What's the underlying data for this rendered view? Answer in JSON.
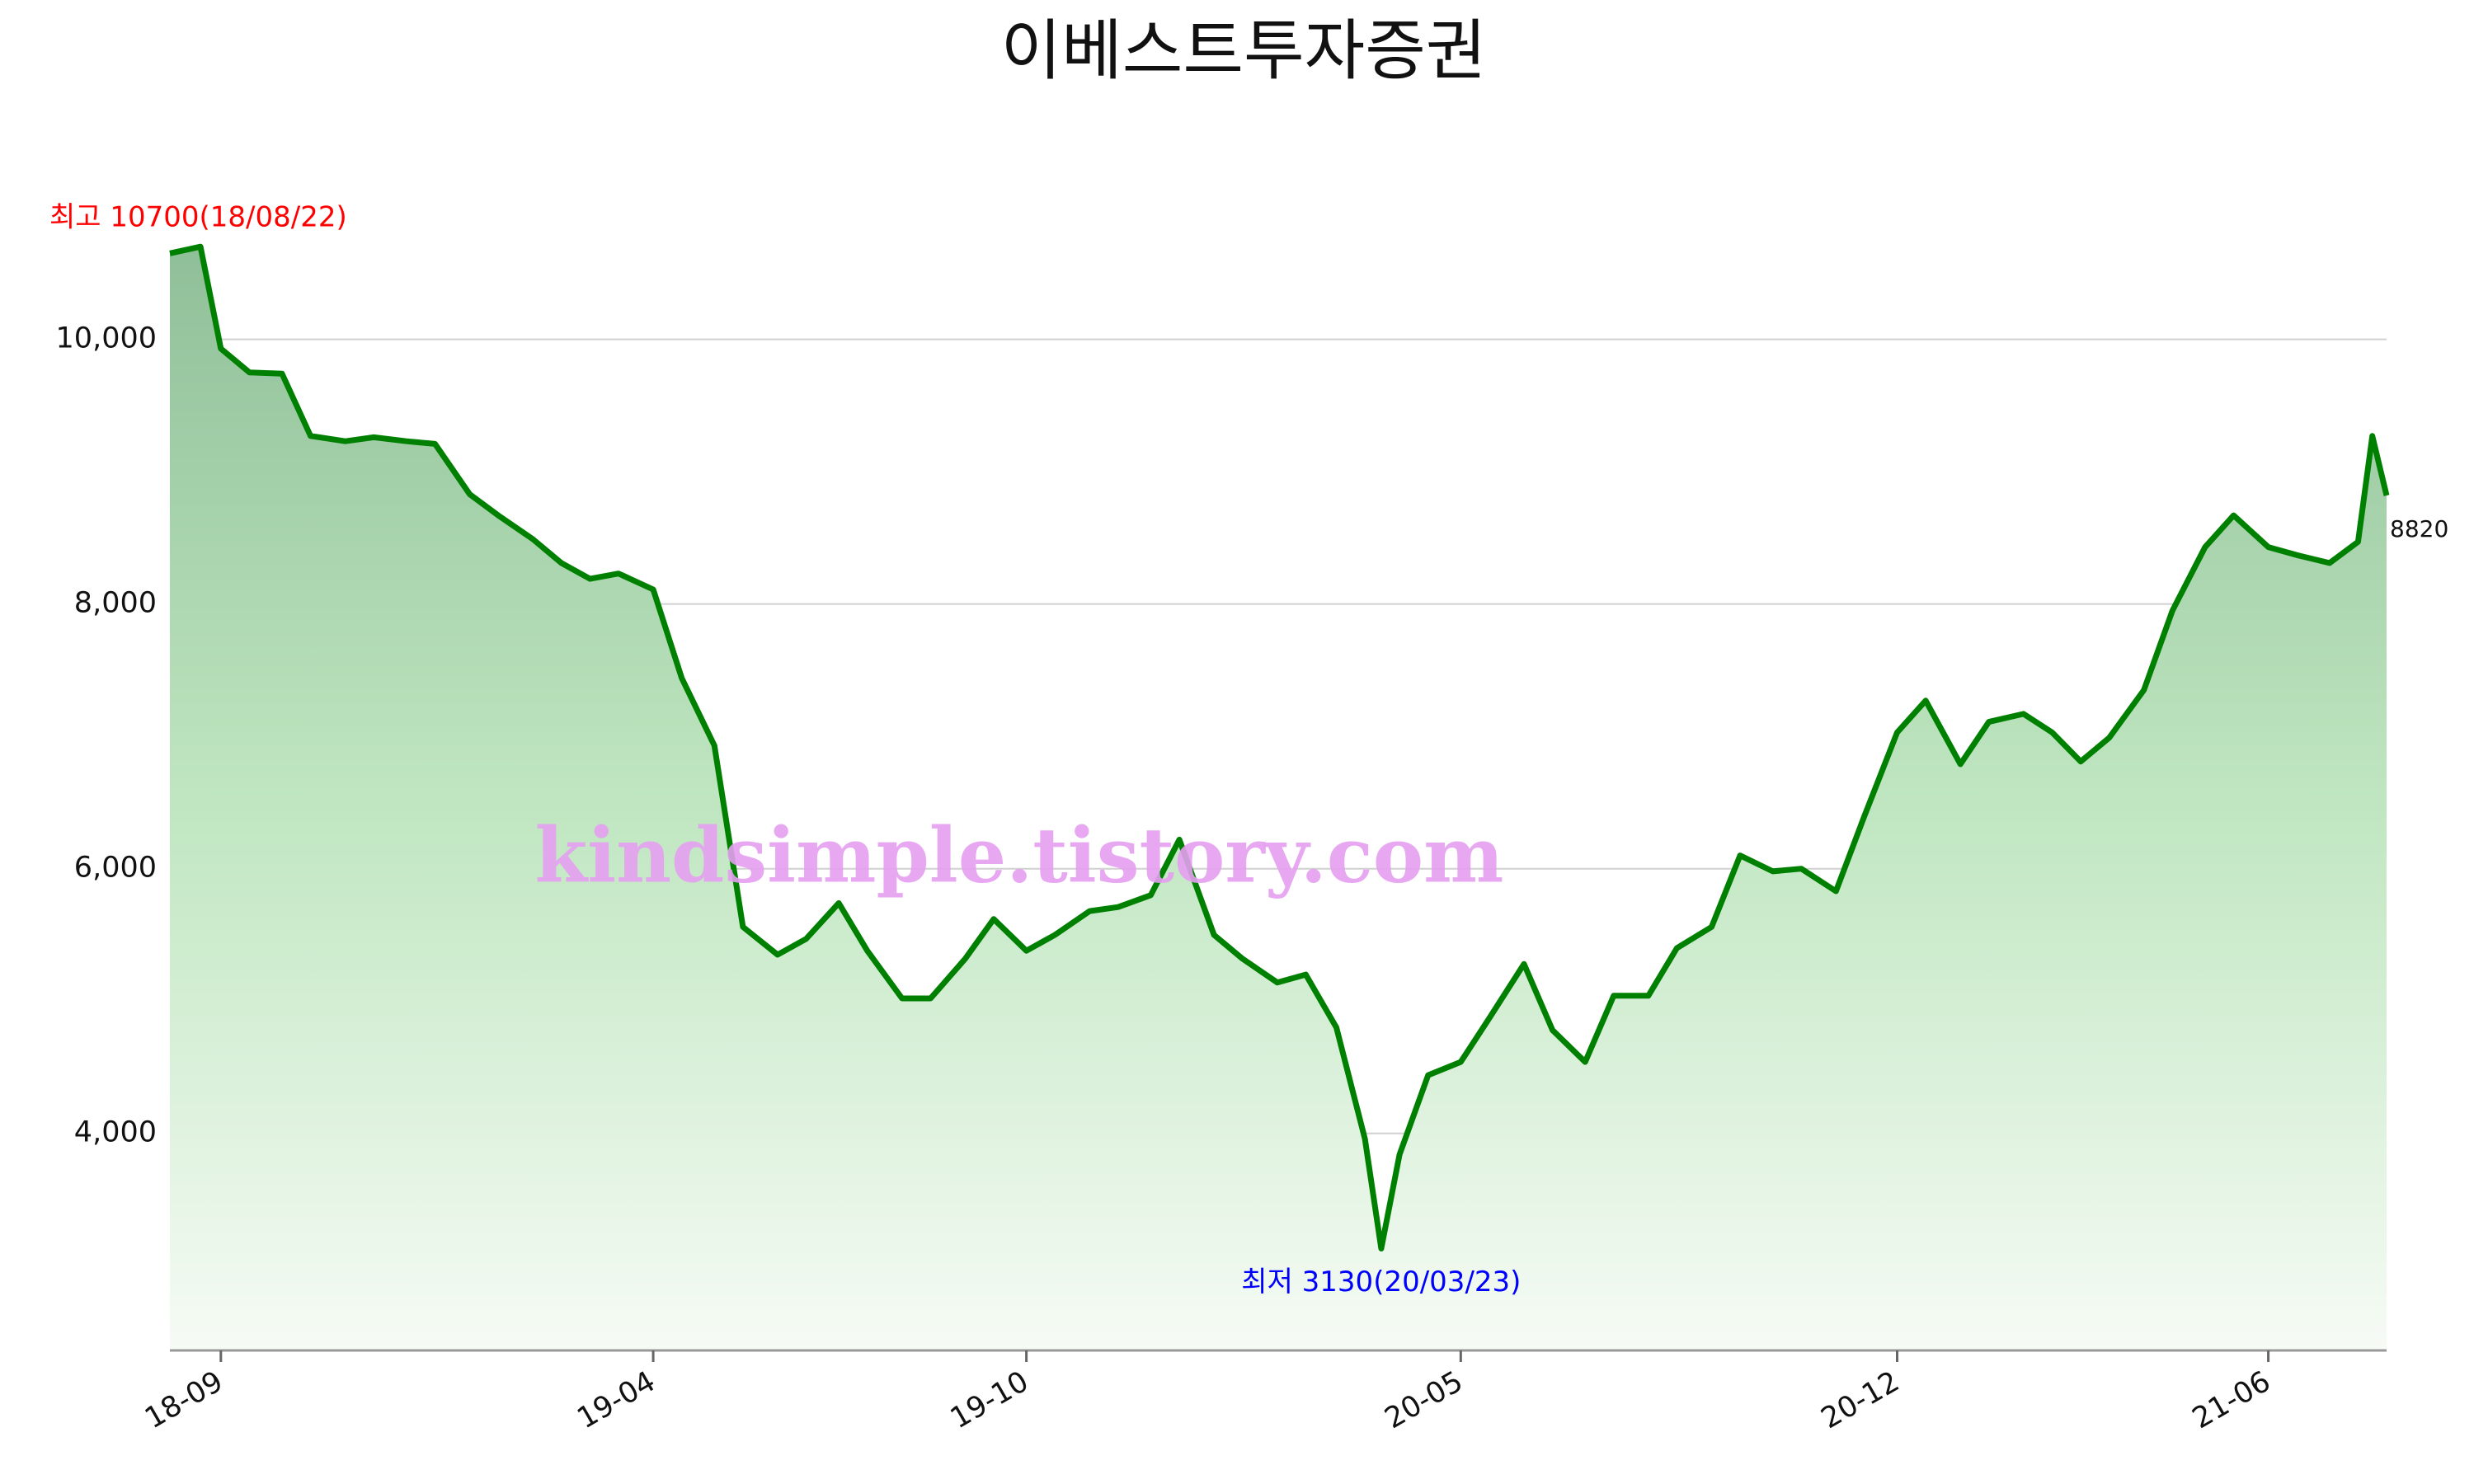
{
  "chart_data": {
    "type": "line",
    "title": "이베스트투자증권",
    "x": [
      "2018-08-07",
      "2018-08-22",
      "2018-09-01",
      "2018-09-15",
      "2018-10-01",
      "2018-10-15",
      "2018-11-01",
      "2018-11-15",
      "2018-12-01",
      "2018-12-15",
      "2019-01-01",
      "2019-01-15",
      "2019-02-01",
      "2019-02-15",
      "2019-03-01",
      "2019-03-15",
      "2019-04-01",
      "2019-04-15",
      "2019-05-01",
      "2019-05-15",
      "2019-06-01",
      "2019-06-15",
      "2019-07-01",
      "2019-07-15",
      "2019-08-01",
      "2019-08-15",
      "2019-09-01",
      "2019-09-15",
      "2019-10-01",
      "2019-10-15",
      "2019-11-01",
      "2019-11-15",
      "2019-12-01",
      "2019-12-15",
      "2020-01-01",
      "2020-01-15",
      "2020-02-01",
      "2020-02-15",
      "2020-03-01",
      "2020-03-15",
      "2020-03-23",
      "2020-04-01",
      "2020-04-15",
      "2020-05-01",
      "2020-05-15",
      "2020-06-01",
      "2020-06-15",
      "2020-07-01",
      "2020-07-15",
      "2020-08-01",
      "2020-08-15",
      "2020-09-01",
      "2020-09-15",
      "2020-10-01",
      "2020-10-15",
      "2020-11-01",
      "2020-11-15",
      "2020-12-01",
      "2020-12-15",
      "2021-01-01",
      "2021-01-15",
      "2021-02-01",
      "2021-02-15",
      "2021-03-01",
      "2021-03-15",
      "2021-04-01",
      "2021-04-15",
      "2021-05-01",
      "2021-05-15",
      "2021-06-01",
      "2021-06-15",
      "2021-07-01",
      "2021-07-15",
      "2021-07-22",
      "2021-07-29"
    ],
    "series": [
      {
        "name": "이베스트투자증권",
        "color": "#008000",
        "values": [
          10650,
          10700,
          9930,
          9750,
          9740,
          9270,
          9230,
          9260,
          9230,
          9210,
          8830,
          8670,
          8490,
          8310,
          8190,
          8230,
          8110,
          7440,
          6930,
          5560,
          5350,
          5470,
          5740,
          5380,
          5020,
          5020,
          5320,
          5620,
          5380,
          5500,
          5680,
          5710,
          5800,
          6220,
          5500,
          5320,
          5140,
          5200,
          4800,
          3960,
          3130,
          3840,
          4440,
          4540,
          4870,
          5280,
          4780,
          4540,
          5040,
          5040,
          5400,
          5560,
          6100,
          5980,
          6000,
          5830,
          6400,
          7030,
          7270,
          6790,
          7110,
          7170,
          7030,
          6810,
          6990,
          7350,
          7950,
          8430,
          8670,
          8430,
          8370,
          8310,
          8470,
          9270,
          8820
        ]
      }
    ],
    "xlim": [
      "2018-08-07",
      "2021-07-29"
    ],
    "xticks": [
      {
        "value": "2018-09-01",
        "label": "18-09"
      },
      {
        "value": "2019-04-01",
        "label": "19-04"
      },
      {
        "value": "2019-10-01",
        "label": "19-10"
      },
      {
        "value": "2020-05-01",
        "label": "20-05"
      },
      {
        "value": "2020-12-01",
        "label": "20-12"
      },
      {
        "value": "2021-06-01",
        "label": "21-06"
      }
    ],
    "ylim": [
      2360,
      10770
    ],
    "yticks": [
      {
        "value": 4000,
        "label": "4,000"
      },
      {
        "value": 6000,
        "label": "6,000"
      },
      {
        "value": 8000,
        "label": "8,000"
      },
      {
        "value": 10000,
        "label": "10,000"
      }
    ],
    "grid": true,
    "annotations": [
      {
        "text": "최고 10700(18/08/22)",
        "color": "#ff0000"
      },
      {
        "text": "최저 3130(20/03/23)",
        "color": "#0000ff"
      }
    ],
    "watermark": "kindsimple.tistory.com"
  }
}
